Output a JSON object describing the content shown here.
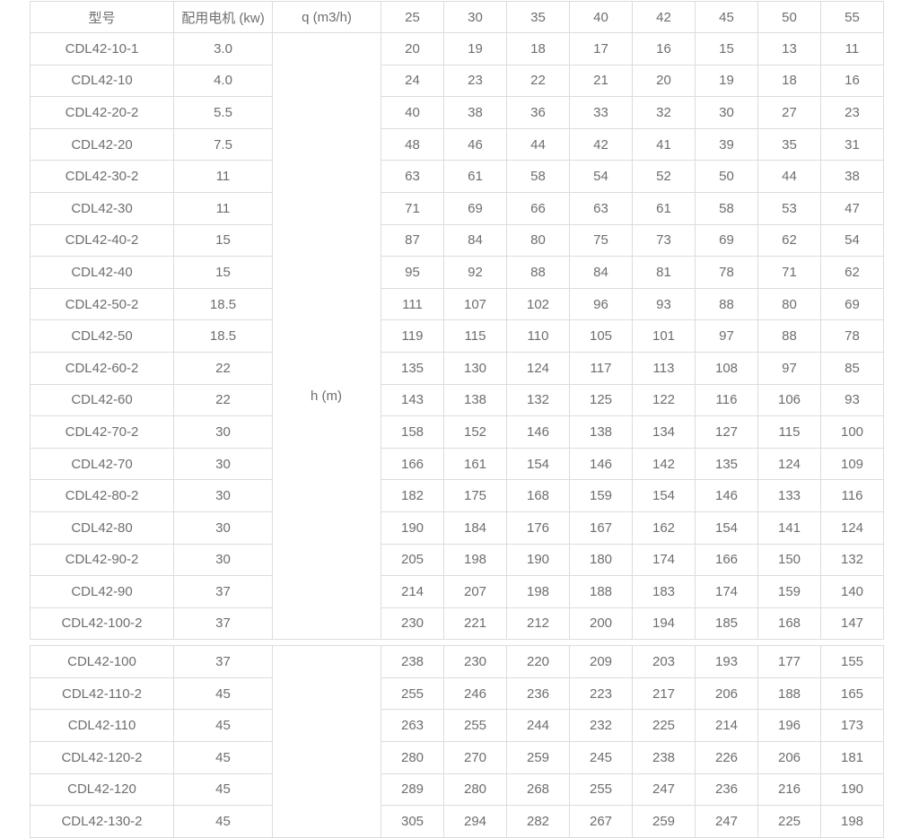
{
  "table": {
    "headers": [
      "型号",
      "配用电机 (kw)",
      "q (m3/h)",
      "25",
      "30",
      "35",
      "40",
      "42",
      "45",
      "50",
      "55"
    ],
    "h_label": "h (m)",
    "rows_top": [
      {
        "model": "CDL42-10-1",
        "motor": "3.0",
        "values": [
          "20",
          "19",
          "18",
          "17",
          "16",
          "15",
          "13",
          "11"
        ]
      },
      {
        "model": "CDL42-10",
        "motor": "4.0",
        "values": [
          "24",
          "23",
          "22",
          "21",
          "20",
          "19",
          "18",
          "16"
        ]
      },
      {
        "model": "CDL42-20-2",
        "motor": "5.5",
        "values": [
          "40",
          "38",
          "36",
          "33",
          "32",
          "30",
          "27",
          "23"
        ]
      },
      {
        "model": "CDL42-20",
        "motor": "7.5",
        "values": [
          "48",
          "46",
          "44",
          "42",
          "41",
          "39",
          "35",
          "31"
        ]
      },
      {
        "model": "CDL42-30-2",
        "motor": "11",
        "values": [
          "63",
          "61",
          "58",
          "54",
          "52",
          "50",
          "44",
          "38"
        ]
      },
      {
        "model": "CDL42-30",
        "motor": "11",
        "values": [
          "71",
          "69",
          "66",
          "63",
          "61",
          "58",
          "53",
          "47"
        ]
      },
      {
        "model": "CDL42-40-2",
        "motor": "15",
        "values": [
          "87",
          "84",
          "80",
          "75",
          "73",
          "69",
          "62",
          "54"
        ]
      },
      {
        "model": "CDL42-40",
        "motor": "15",
        "values": [
          "95",
          "92",
          "88",
          "84",
          "81",
          "78",
          "71",
          "62"
        ]
      },
      {
        "model": "CDL42-50-2",
        "motor": "18.5",
        "values": [
          "111",
          "107",
          "102",
          "96",
          "93",
          "88",
          "80",
          "69"
        ]
      },
      {
        "model": "CDL42-50",
        "motor": "18.5",
        "values": [
          "119",
          "115",
          "110",
          "105",
          "101",
          "97",
          "88",
          "78"
        ]
      },
      {
        "model": "CDL42-60-2",
        "motor": "22",
        "values": [
          "135",
          "130",
          "124",
          "117",
          "113",
          "108",
          "97",
          "85"
        ]
      },
      {
        "model": "CDL42-60",
        "motor": "22",
        "values": [
          "143",
          "138",
          "132",
          "125",
          "122",
          "116",
          "106",
          "93"
        ]
      },
      {
        "model": "CDL42-70-2",
        "motor": "30",
        "values": [
          "158",
          "152",
          "146",
          "138",
          "134",
          "127",
          "115",
          "100"
        ]
      },
      {
        "model": "CDL42-70",
        "motor": "30",
        "values": [
          "166",
          "161",
          "154",
          "146",
          "142",
          "135",
          "124",
          "109"
        ]
      },
      {
        "model": "CDL42-80-2",
        "motor": "30",
        "values": [
          "182",
          "175",
          "168",
          "159",
          "154",
          "146",
          "133",
          "116"
        ]
      },
      {
        "model": "CDL42-80",
        "motor": "30",
        "values": [
          "190",
          "184",
          "176",
          "167",
          "162",
          "154",
          "141",
          "124"
        ]
      },
      {
        "model": "CDL42-90-2",
        "motor": "30",
        "values": [
          "205",
          "198",
          "190",
          "180",
          "174",
          "166",
          "150",
          "132"
        ]
      },
      {
        "model": "CDL42-90",
        "motor": "37",
        "values": [
          "214",
          "207",
          "198",
          "188",
          "183",
          "174",
          "159",
          "140"
        ]
      },
      {
        "model": "CDL42-100-2",
        "motor": "37",
        "values": [
          "230",
          "221",
          "212",
          "200",
          "194",
          "185",
          "168",
          "147"
        ]
      }
    ],
    "rows_bottom": [
      {
        "model": "CDL42-100",
        "motor": "37",
        "values": [
          "238",
          "230",
          "220",
          "209",
          "203",
          "193",
          "177",
          "155"
        ]
      },
      {
        "model": "CDL42-110-2",
        "motor": "45",
        "values": [
          "255",
          "246",
          "236",
          "223",
          "217",
          "206",
          "188",
          "165"
        ]
      },
      {
        "model": "CDL42-110",
        "motor": "45",
        "values": [
          "263",
          "255",
          "244",
          "232",
          "225",
          "214",
          "196",
          "173"
        ]
      },
      {
        "model": "CDL42-120-2",
        "motor": "45",
        "values": [
          "280",
          "270",
          "259",
          "245",
          "238",
          "226",
          "206",
          "181"
        ]
      },
      {
        "model": "CDL42-120",
        "motor": "45",
        "values": [
          "289",
          "280",
          "268",
          "255",
          "247",
          "236",
          "216",
          "190"
        ]
      },
      {
        "model": "CDL42-130-2",
        "motor": "45",
        "values": [
          "305",
          "294",
          "282",
          "267",
          "259",
          "247",
          "225",
          "198"
        ]
      }
    ]
  },
  "colors": {
    "text": "#6e6e6e",
    "border": "#dcdcdc",
    "background": "#ffffff"
  }
}
